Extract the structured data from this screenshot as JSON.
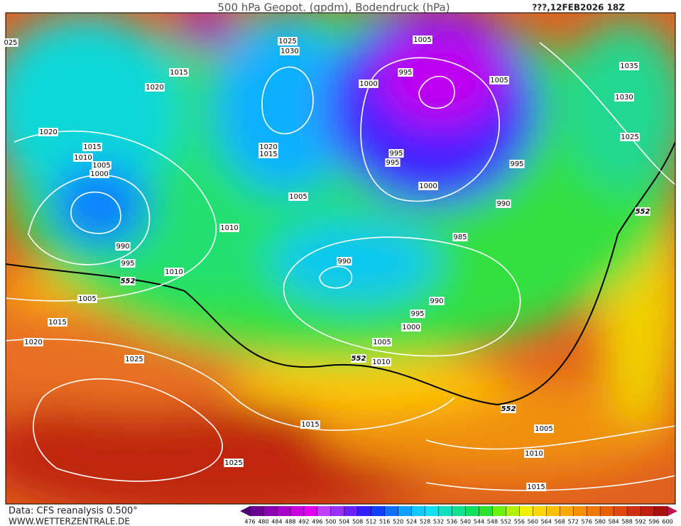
{
  "header": {
    "title": "500 hPa Geopot. (gpdm), Bodendruck (hPa)",
    "date": "???,12FEB2026 18Z"
  },
  "isobar_labels": [
    "025",
    "1025",
    "1030",
    "1005",
    "995",
    "1000",
    "1005",
    "1035",
    "1030",
    "1015",
    "1020",
    "1020",
    "1015",
    "1010",
    "1005",
    "1000",
    "1020",
    "1015",
    "995",
    "995",
    "1025",
    "995",
    "1000",
    "990",
    "552",
    "1005",
    "1010",
    "985",
    "990",
    "995",
    "990",
    "1010",
    "552",
    "1005",
    "990",
    "995",
    "1015",
    "1000",
    "1020",
    "1005",
    "1025",
    "552",
    "1010",
    "552",
    "1015",
    "1005",
    "1010",
    "1025",
    "1015"
  ],
  "colorbar": {
    "ticks": [
      476,
      480,
      484,
      488,
      492,
      496,
      500,
      504,
      508,
      512,
      516,
      520,
      524,
      528,
      532,
      536,
      540,
      544,
      548,
      552,
      556,
      560,
      564,
      568,
      572,
      576,
      580,
      584,
      588,
      592,
      596,
      600
    ],
    "colors": [
      "#4b0070",
      "#6a0090",
      "#8a00b0",
      "#a800c8",
      "#c800e0",
      "#e000f0",
      "#c040ff",
      "#9a30ff",
      "#6a20ff",
      "#3020ff",
      "#1040ff",
      "#1070ff",
      "#10a0ff",
      "#10c8ff",
      "#10e0f0",
      "#10e0c0",
      "#10e090",
      "#10e060",
      "#30e030",
      "#70f010",
      "#b0f000",
      "#f0f000",
      "#ffd800",
      "#ffc000",
      "#ffa800",
      "#f89000",
      "#f07800",
      "#e86000",
      "#e04a10",
      "#d03010",
      "#c02010",
      "#a81010",
      "#c01050"
    ]
  },
  "footer": {
    "source": "Data: CFS reanalysis 0.500°",
    "site": "WWW.WETTERZENTRALE.DE"
  }
}
